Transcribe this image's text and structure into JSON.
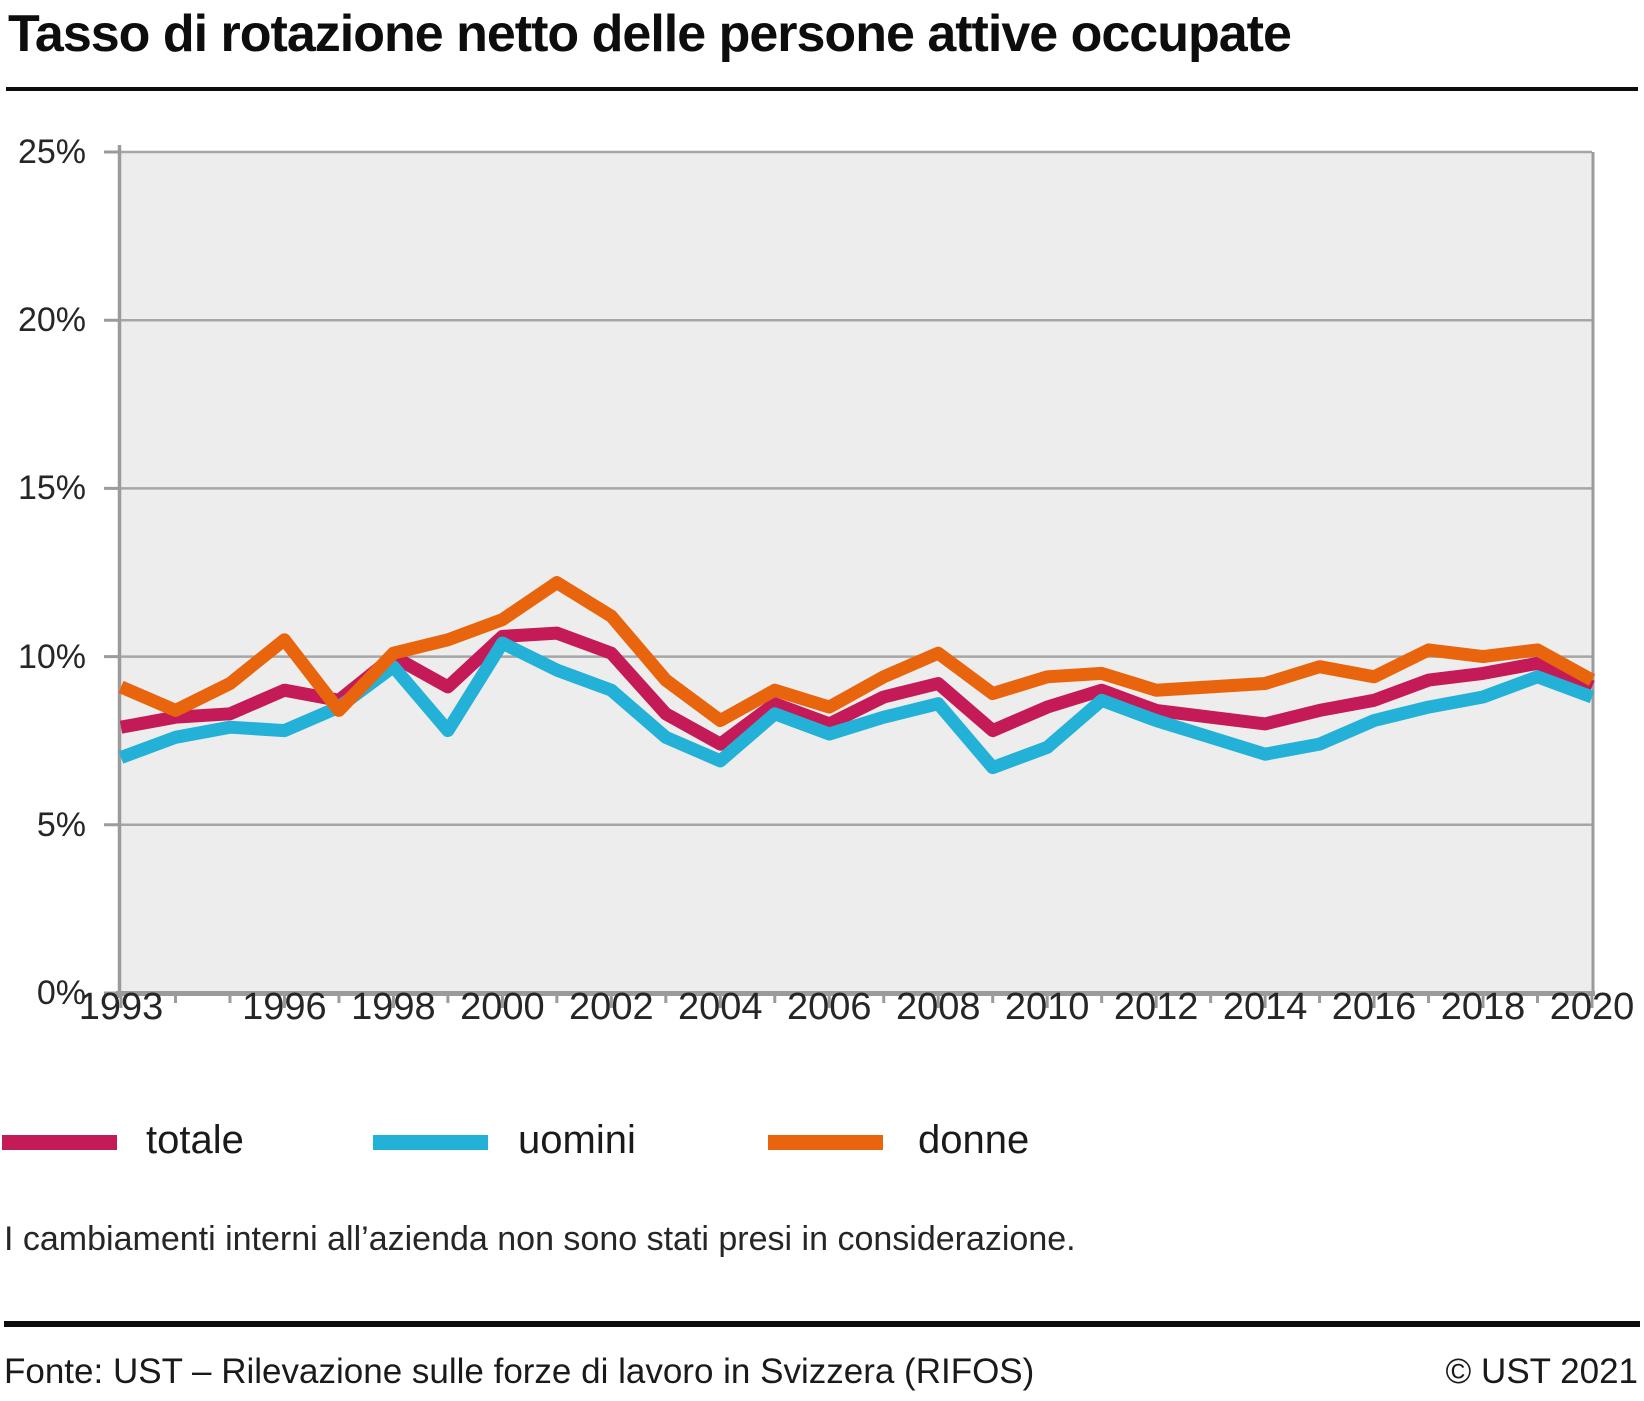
{
  "title": "Tasso di rotazione netto delle persone attive occupate",
  "footnote": "I cambiamenti interni all’azienda non sono stati presi in considerazione.",
  "source_left": "Fonte: UST – Rilevazione sulle forze di lavoro in Svizzera (RIFOS)",
  "source_right": "© UST 2021",
  "colors": {
    "totale": "#c41a58",
    "uomini": "#23b1d7",
    "donne": "#e8650d",
    "plot_bg": "#ededed",
    "grid": "#a6a6a6",
    "axis": "#9b9b9b",
    "text": "#1a1a1a"
  },
  "legend": {
    "items": [
      {
        "label": "totale",
        "color": "#c41a58"
      },
      {
        "label": "uomini",
        "color": "#23b1d7"
      },
      {
        "label": "donne",
        "color": "#e8650d"
      }
    ]
  },
  "chart_data": {
    "type": "line",
    "title": "Tasso di rotazione netto delle persone attive occupate",
    "xlabel": "",
    "ylabel": "",
    "ylim": [
      0,
      25
    ],
    "grid": true,
    "legend_position": "bottom",
    "x": [
      1993,
      1994,
      1995,
      1996,
      1997,
      1998,
      1999,
      2000,
      2001,
      2002,
      2003,
      2004,
      2005,
      2006,
      2007,
      2008,
      2009,
      2010,
      2011,
      2012,
      2013,
      2014,
      2015,
      2016,
      2017,
      2018,
      2019,
      2020
    ],
    "series": [
      {
        "name": "totale",
        "color": "#c41a58",
        "values": [
          7.9,
          8.2,
          8.3,
          9.0,
          8.7,
          10.0,
          9.1,
          10.6,
          10.7,
          10.1,
          8.3,
          7.4,
          8.6,
          8.0,
          8.8,
          9.2,
          7.8,
          8.5,
          9.0,
          8.4,
          8.2,
          8.0,
          8.4,
          8.7,
          9.3,
          9.5,
          9.8,
          9.1
        ]
      },
      {
        "name": "uomini",
        "color": "#23b1d7",
        "values": [
          7.0,
          7.6,
          7.9,
          7.8,
          8.5,
          9.7,
          7.8,
          10.4,
          9.6,
          9.0,
          7.6,
          6.9,
          8.3,
          7.7,
          8.2,
          8.6,
          6.7,
          7.3,
          8.7,
          8.1,
          7.6,
          7.1,
          7.4,
          8.1,
          8.5,
          8.8,
          9.4,
          8.8
        ]
      },
      {
        "name": "donne",
        "color": "#e8650d",
        "values": [
          9.1,
          8.4,
          9.2,
          10.5,
          8.4,
          10.1,
          10.5,
          11.1,
          12.2,
          11.2,
          9.3,
          8.1,
          9.0,
          8.5,
          9.4,
          10.1,
          8.9,
          9.4,
          9.5,
          9.0,
          9.1,
          9.2,
          9.7,
          9.4,
          10.2,
          10.0,
          10.2,
          9.3
        ]
      }
    ],
    "y_tick_labels": [
      "0%",
      "5%",
      "10%",
      "15%",
      "20%",
      "25%"
    ],
    "y_tick_values": [
      0,
      5,
      10,
      15,
      20,
      25
    ],
    "x_tick_labels": [
      1993,
      1996,
      1998,
      2000,
      2002,
      2004,
      2006,
      2008,
      2010,
      2012,
      2014,
      2016,
      2018,
      2020
    ]
  }
}
